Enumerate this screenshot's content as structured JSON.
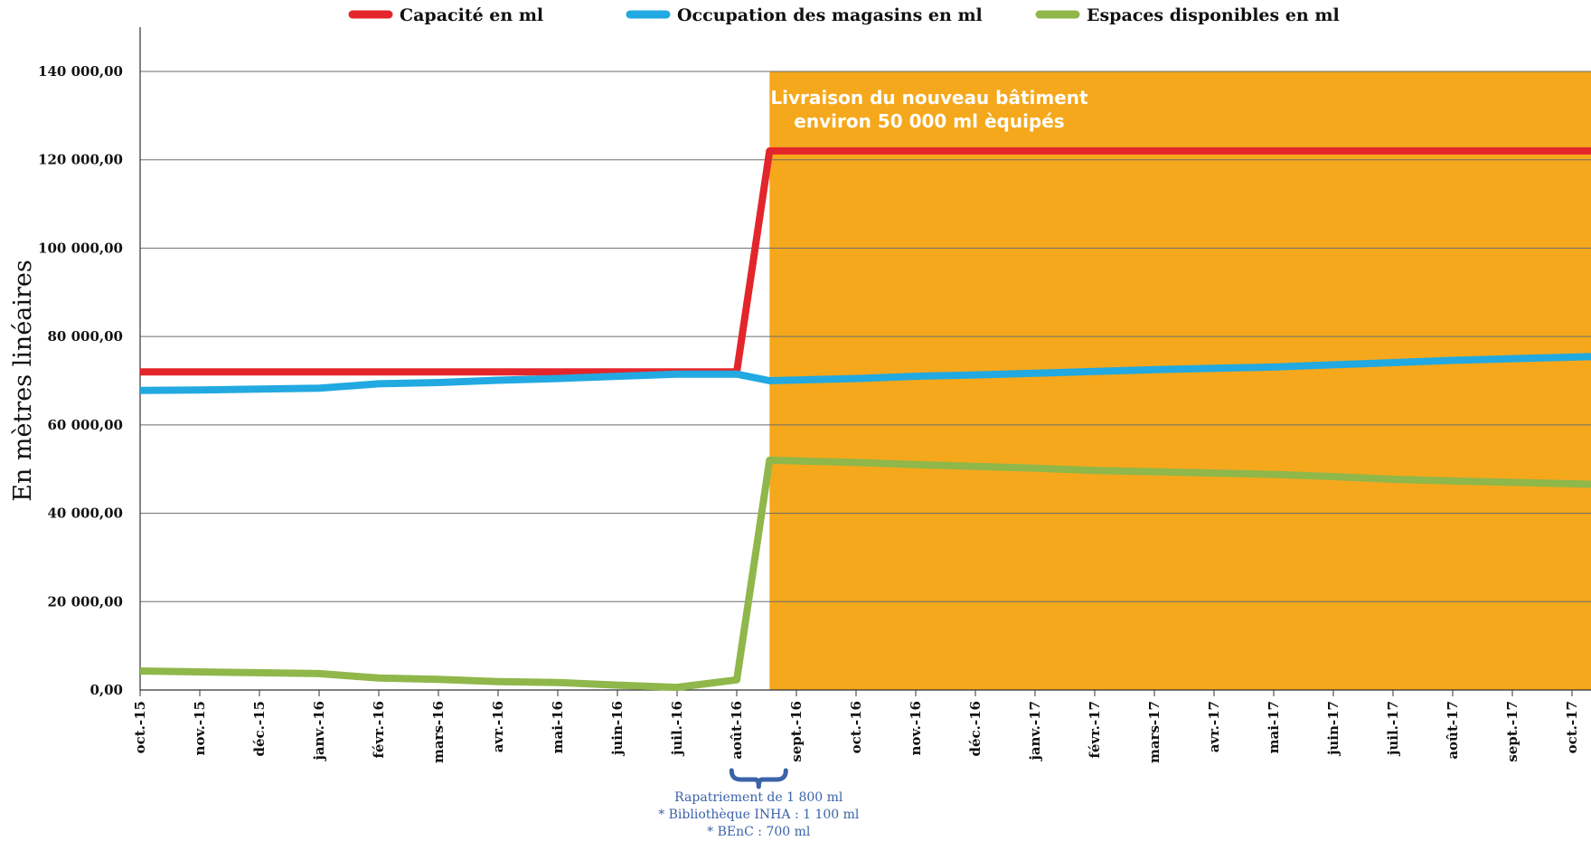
{
  "chart_data": {
    "type": "line",
    "title": "",
    "xlabel": "",
    "ylabel": "En mètres linéaires",
    "ylim": [
      0,
      140000
    ],
    "yticks": [
      0,
      20000,
      40000,
      60000,
      80000,
      100000,
      120000,
      140000
    ],
    "ytick_labels": [
      "0,00",
      "20 000,00",
      "40 000,00",
      "60 000,00",
      "80 000,00",
      "100 000,00",
      "120 000,00",
      "140 000,00"
    ],
    "grid": true,
    "legend_position": "top",
    "categories": [
      "oct.-15",
      "nov.-15",
      "déc.-15",
      "janv.-16",
      "févr.-16",
      "mars-16",
      "avr.-16",
      "mai-16",
      "juin-16",
      "juil.-16",
      "août-16",
      "sept.-16",
      "oct.-16",
      "nov.-16",
      "déc.-16",
      "janv.-17",
      "févr.-17",
      "mars-17",
      "avr.-17",
      "mai-17",
      "juin-17",
      "juil.-17",
      "août-17",
      "sept.-17",
      "oct.-17"
    ],
    "series": [
      {
        "name": "Capacité en ml",
        "color": "#e3262b",
        "points": [
          [
            0,
            72000
          ],
          [
            10,
            72000
          ],
          [
            10.55,
            122000
          ],
          [
            24.5,
            122000
          ]
        ]
      },
      {
        "name": "Occupation des magasins en ml",
        "color": "#22a9e1",
        "points": [
          [
            0,
            67800
          ],
          [
            1,
            67900
          ],
          [
            2,
            68100
          ],
          [
            3,
            68300
          ],
          [
            4,
            69300
          ],
          [
            5,
            69600
          ],
          [
            6,
            70100
          ],
          [
            7,
            70500
          ],
          [
            8,
            71000
          ],
          [
            9,
            71500
          ],
          [
            10,
            71500
          ],
          [
            10.55,
            70000
          ],
          [
            12,
            70500
          ],
          [
            13,
            71000
          ],
          [
            14,
            71300
          ],
          [
            15,
            71700
          ],
          [
            16,
            72100
          ],
          [
            17,
            72500
          ],
          [
            18,
            72800
          ],
          [
            19,
            73100
          ],
          [
            20,
            73600
          ],
          [
            21,
            74100
          ],
          [
            22,
            74600
          ],
          [
            23,
            75000
          ],
          [
            24.5,
            75500
          ]
        ]
      },
      {
        "name": "Espaces disponibles en ml",
        "color": "#8fb74a",
        "points": [
          [
            0,
            4300
          ],
          [
            1,
            4100
          ],
          [
            2,
            3900
          ],
          [
            3,
            3700
          ],
          [
            4,
            2700
          ],
          [
            5,
            2400
          ],
          [
            6,
            1900
          ],
          [
            7,
            1700
          ],
          [
            8,
            1100
          ],
          [
            9,
            600
          ],
          [
            10,
            2300
          ],
          [
            10.55,
            52000
          ],
          [
            12,
            51500
          ],
          [
            13,
            51000
          ],
          [
            14,
            50600
          ],
          [
            15,
            50200
          ],
          [
            16,
            49700
          ],
          [
            17,
            49400
          ],
          [
            18,
            49100
          ],
          [
            19,
            48800
          ],
          [
            20,
            48300
          ],
          [
            21,
            47700
          ],
          [
            22,
            47300
          ],
          [
            23,
            47000
          ],
          [
            24.5,
            46500
          ]
        ]
      }
    ],
    "highlight_band": {
      "x_start": 10.55,
      "color": "#f5a81c",
      "lines": [
        "Livraison du nouveau bâtiment",
        "environ 50 000 ml èquipés"
      ]
    },
    "annotation": {
      "x": 10.55,
      "color": "#3a63a8",
      "lines": [
        "Rapatriement de 1 800 ml",
        "* Bibliothèque INHA : 1 100 ml",
        "* BEnC : 700 ml"
      ]
    }
  }
}
